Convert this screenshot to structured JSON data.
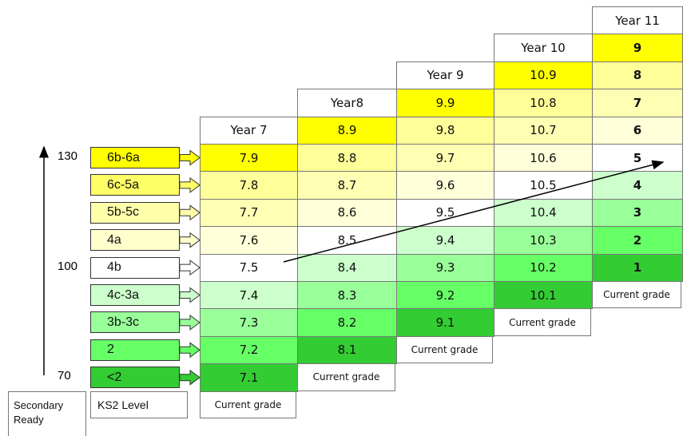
{
  "axis": {
    "ticks": [
      "130",
      "100",
      "70"
    ],
    "label": "Secondary Ready"
  },
  "ks2": {
    "title": "KS2 Level",
    "levels": [
      "6b-6a",
      "6c-5a",
      "5b-5c",
      "4a",
      "4b",
      "4c-3a",
      "3b-3c",
      "2",
      "<2"
    ],
    "colors": [
      "#ffff00",
      "#ffff66",
      "#ffffaa",
      "#ffffcc",
      "#ffffff",
      "#ccffcc",
      "#99ff99",
      "#66ff66",
      "#33cc33"
    ]
  },
  "level_colors": [
    "#ffff00",
    "#ffff99",
    "#ffffb3",
    "#ffffd9",
    "#ffffff",
    "#ccffcc",
    "#99ff99",
    "#66ff66",
    "#33cc33"
  ],
  "years": [
    {
      "header": "Year 7",
      "cells": [
        "7.9",
        "7.8",
        "7.7",
        "7.6",
        "7.5",
        "7.4",
        "7.3",
        "7.2",
        "7.1"
      ],
      "footer": "Current grade"
    },
    {
      "header": "Year8",
      "cells": [
        "8.9",
        "8.8",
        "8.7",
        "8.6",
        "8.5",
        "8.4",
        "8.3",
        "8.2",
        "8.1"
      ],
      "footer": "Current grade"
    },
    {
      "header": "Year 9",
      "cells": [
        "9.9",
        "9.8",
        "9.7",
        "9.6",
        "9.5",
        "9.4",
        "9.3",
        "9.2",
        "9.1"
      ],
      "footer": "Current grade"
    },
    {
      "header": "Year 10",
      "cells": [
        "10.9",
        "10.8",
        "10.7",
        "10.6",
        "10.5",
        "10.4",
        "10.3",
        "10.2",
        "10.1"
      ],
      "footer": "Current grade"
    },
    {
      "header": "Year 11",
      "cells": [
        "9",
        "8",
        "7",
        "6",
        "5",
        "4",
        "3",
        "2",
        "1"
      ],
      "footer": "Current grade",
      "bold": true
    }
  ]
}
